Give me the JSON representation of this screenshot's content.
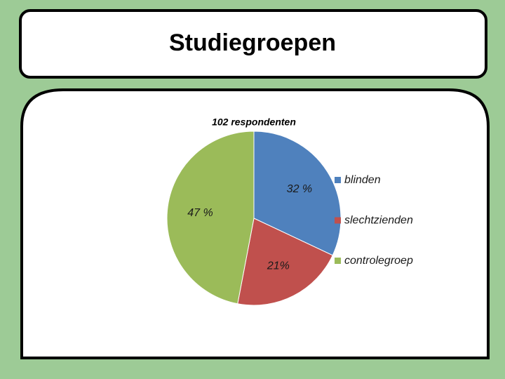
{
  "slide": {
    "title": "Studiegroepen"
  },
  "chart_data": {
    "type": "pie",
    "title": "102 respondenten",
    "categories": [
      "blinden",
      "slechtzienden",
      "controlegroep"
    ],
    "values": [
      32,
      21,
      47
    ],
    "value_labels": [
      "32 %",
      "21%",
      "47 %"
    ],
    "colors": [
      "#4f81bd",
      "#c0504d",
      "#9bbb59"
    ]
  }
}
